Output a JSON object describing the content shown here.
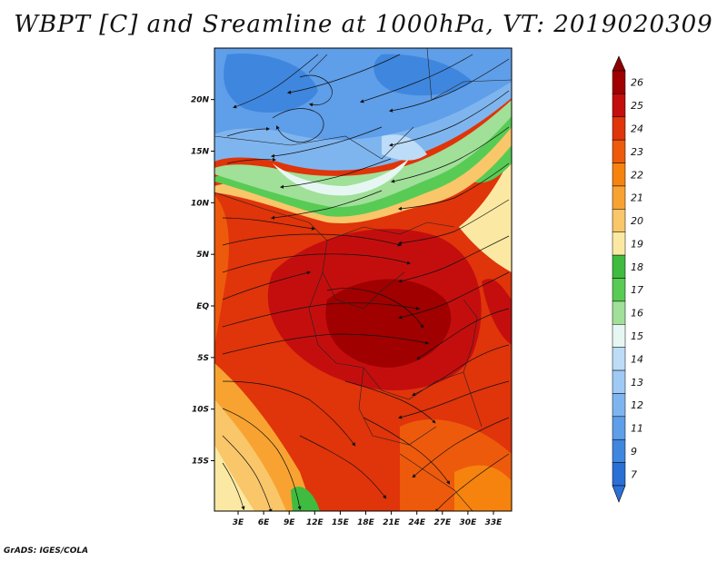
{
  "title": "WBPT [C] and Sreamline at 1000hPa, VT: 2019020309",
  "credit": "GrADS: IGES/COLA",
  "map": {
    "lat_labels": [
      {
        "lat": 20,
        "label": "20N"
      },
      {
        "lat": 15,
        "label": "15N"
      },
      {
        "lat": 10,
        "label": "10N"
      },
      {
        "lat": 5,
        "label": "5N"
      },
      {
        "lat": 0,
        "label": "EQ"
      },
      {
        "lat": -5,
        "label": "5S"
      },
      {
        "lat": -10,
        "label": "10S"
      },
      {
        "lat": -15,
        "label": "15S"
      }
    ],
    "lon_labels": [
      {
        "lon": 3,
        "label": "3E"
      },
      {
        "lon": 6,
        "label": "6E"
      },
      {
        "lon": 9,
        "label": "9E"
      },
      {
        "lon": 12,
        "label": "12E"
      },
      {
        "lon": 15,
        "label": "15E"
      },
      {
        "lon": 18,
        "label": "18E"
      },
      {
        "lon": 21,
        "label": "21E"
      },
      {
        "lon": 24,
        "label": "24E"
      },
      {
        "lon": 27,
        "label": "27E"
      },
      {
        "lon": 30,
        "label": "30E"
      },
      {
        "lon": 33,
        "label": "33E"
      }
    ]
  },
  "colorbar": {
    "levels": [
      {
        "label": "26",
        "color": "#a00000"
      },
      {
        "label": "25",
        "color": "#c40e0e"
      },
      {
        "label": "24",
        "color": "#e0340a"
      },
      {
        "label": "23",
        "color": "#ee5a0c"
      },
      {
        "label": "22",
        "color": "#f6830e"
      },
      {
        "label": "21",
        "color": "#f8a331"
      },
      {
        "label": "20",
        "color": "#f9c66a"
      },
      {
        "label": "19",
        "color": "#fbe9a3"
      },
      {
        "label": "18",
        "color": "#3fbb3f"
      },
      {
        "label": "17",
        "color": "#58cb55"
      },
      {
        "label": "16",
        "color": "#a0e098"
      },
      {
        "label": "15",
        "color": "#e6f7f3"
      },
      {
        "label": "14",
        "color": "#bcdcf7"
      },
      {
        "label": "13",
        "color": "#9fcaf5"
      },
      {
        "label": "12",
        "color": "#7fb5ef"
      },
      {
        "label": "11",
        "color": "#5f9ee8"
      },
      {
        "label": "9",
        "color": "#3f86de"
      },
      {
        "label": "7",
        "color": "#2a6fd6"
      }
    ],
    "over_color": "#8f0000",
    "under_color": "#2b71d8"
  }
}
